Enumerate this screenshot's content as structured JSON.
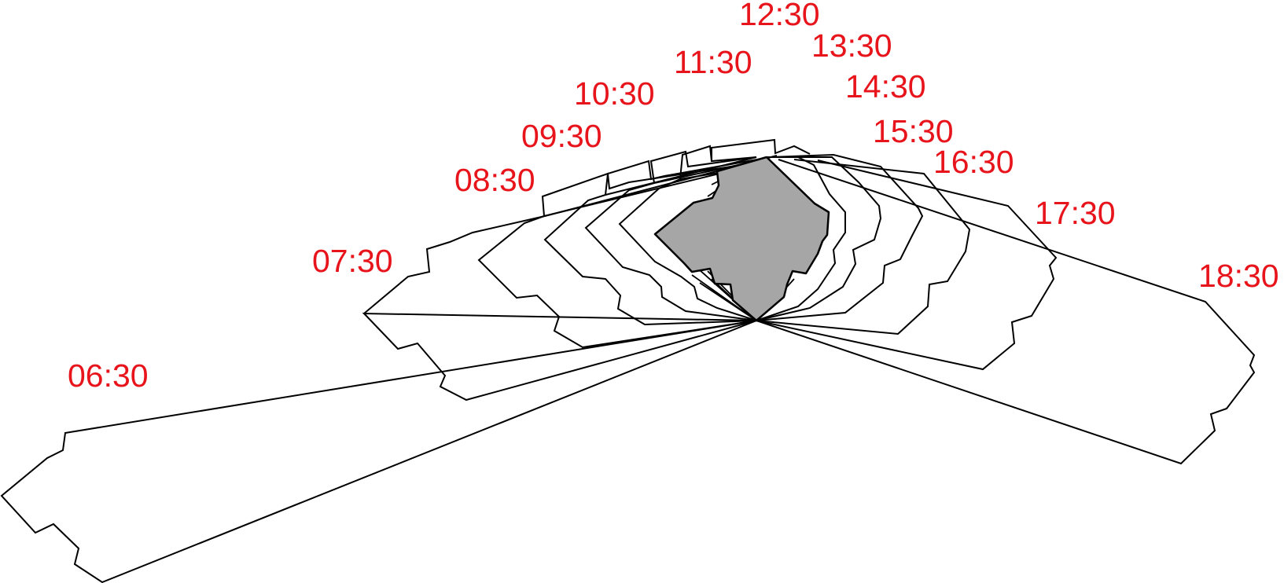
{
  "time_labels": [
    {
      "id": "0630",
      "text": "06:30"
    },
    {
      "id": "0730",
      "text": "07:30"
    },
    {
      "id": "0830",
      "text": "08:30"
    },
    {
      "id": "0930",
      "text": "09:30"
    },
    {
      "id": "1030",
      "text": "10:30"
    },
    {
      "id": "1130",
      "text": "11:30"
    },
    {
      "id": "1230",
      "text": "12:30"
    },
    {
      "id": "1330",
      "text": "13:30"
    },
    {
      "id": "1430",
      "text": "14:30"
    },
    {
      "id": "1530",
      "text": "15:30"
    },
    {
      "id": "1630",
      "text": "16:30"
    },
    {
      "id": "1730",
      "text": "17:30"
    },
    {
      "id": "1830",
      "text": "18:30"
    }
  ],
  "colors": {
    "label": "#e8141b",
    "outline": "#000000",
    "building_fill": "#a6a6a6",
    "background": "#ffffff"
  }
}
